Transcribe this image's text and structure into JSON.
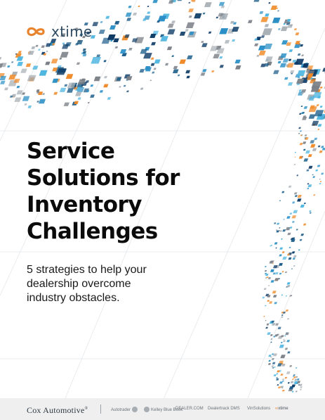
{
  "logo": {
    "wordmark": "xtime",
    "icon": "xtime-infinity-logo",
    "mark_color": "#e8842e",
    "text_color": "#2e4b63"
  },
  "title": {
    "lines": [
      "Service",
      "Solutions for",
      "Inventory",
      "Challenges"
    ]
  },
  "subtitle": {
    "lines": [
      "5 strategies to help your",
      "dealership overcome",
      "industry obstacles."
    ]
  },
  "footer": {
    "parent_brand": "Cox Automotive",
    "trademark": "®",
    "brands": [
      "Autotrader",
      "Kelley Blue Book",
      "DEALER.COM",
      "Dealertrack DMS",
      "VinSolutions",
      "xtime"
    ]
  },
  "palette": [
    "#1f5f8b",
    "#2a8fc6",
    "#4db5e0",
    "#f08a28",
    "#7a7f86",
    "#a9b0b6",
    "#0d3b66"
  ]
}
